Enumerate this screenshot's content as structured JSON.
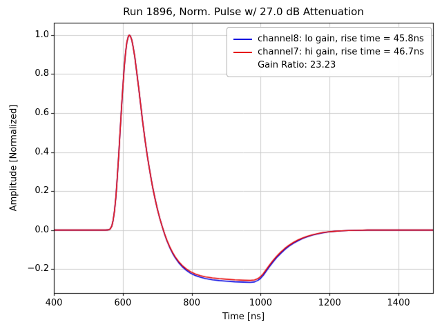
{
  "chart_data": {
    "type": "line",
    "title": "Run 1896, Norm. Pulse w/ 27.0 dB Attenuation",
    "xlabel": "Time [ns]",
    "ylabel": "Amplitude [Normalized]",
    "xlim": [
      400,
      1500
    ],
    "ylim": [
      -0.323,
      1.063
    ],
    "xticks": [
      400,
      600,
      800,
      1000,
      1200,
      1400
    ],
    "yticks": [
      -0.2,
      0.0,
      0.2,
      0.4,
      0.6,
      0.8,
      1.0
    ],
    "ytick_labels": [
      "−0.2",
      "0.0",
      "0.2",
      "0.4",
      "0.6",
      "0.8",
      "1.0"
    ],
    "grid": true,
    "colors": {
      "grid": "#cccccc",
      "spine": "#000000",
      "blue": "#0000e0",
      "red": "#e60000"
    },
    "legend": {
      "position": "upper right",
      "entries": [
        {
          "label": "channel8: lo gain, rise time = 45.8ns",
          "color": "#0000e0"
        },
        {
          "label": "channel7: hi gain, rise time = 46.7ns",
          "color": "#e60000"
        },
        {
          "label": "Gain Ratio: 23.23",
          "color": null
        }
      ]
    },
    "series": [
      {
        "name": "channel8: lo gain",
        "color": "#0000e0",
        "points": [
          [
            400,
            0
          ],
          [
            450,
            0
          ],
          [
            500,
            0
          ],
          [
            530,
            0
          ],
          [
            550,
            0
          ],
          [
            558,
            0.001
          ],
          [
            563,
            0.005
          ],
          [
            568,
            0.02
          ],
          [
            572,
            0.05
          ],
          [
            576,
            0.1
          ],
          [
            580,
            0.17
          ],
          [
            584,
            0.27
          ],
          [
            588,
            0.38
          ],
          [
            592,
            0.5
          ],
          [
            596,
            0.62
          ],
          [
            600,
            0.73
          ],
          [
            604,
            0.83
          ],
          [
            608,
            0.91
          ],
          [
            612,
            0.965
          ],
          [
            616,
            0.993
          ],
          [
            619,
            1.0
          ],
          [
            622,
            0.995
          ],
          [
            626,
            0.975
          ],
          [
            630,
            0.94
          ],
          [
            635,
            0.885
          ],
          [
            640,
            0.815
          ],
          [
            646,
            0.73
          ],
          [
            652,
            0.64
          ],
          [
            658,
            0.55
          ],
          [
            665,
            0.455
          ],
          [
            672,
            0.37
          ],
          [
            679,
            0.295
          ],
          [
            686,
            0.225
          ],
          [
            693,
            0.165
          ],
          [
            700,
            0.11
          ],
          [
            707,
            0.062
          ],
          [
            714,
            0.02
          ],
          [
            721,
            -0.02
          ],
          [
            728,
            -0.055
          ],
          [
            736,
            -0.089
          ],
          [
            744,
            -0.118
          ],
          [
            752,
            -0.142
          ],
          [
            762,
            -0.167
          ],
          [
            772,
            -0.187
          ],
          [
            784,
            -0.206
          ],
          [
            796,
            -0.221
          ],
          [
            810,
            -0.233
          ],
          [
            825,
            -0.242
          ],
          [
            840,
            -0.249
          ],
          [
            860,
            -0.255
          ],
          [
            880,
            -0.259
          ],
          [
            900,
            -0.262
          ],
          [
            925,
            -0.265
          ],
          [
            950,
            -0.267
          ],
          [
            970,
            -0.268
          ],
          [
            982,
            -0.266
          ],
          [
            992,
            -0.258
          ],
          [
            1000,
            -0.247
          ],
          [
            1008,
            -0.231
          ],
          [
            1016,
            -0.211
          ],
          [
            1025,
            -0.189
          ],
          [
            1035,
            -0.166
          ],
          [
            1046,
            -0.142
          ],
          [
            1058,
            -0.12
          ],
          [
            1070,
            -0.1
          ],
          [
            1082,
            -0.083
          ],
          [
            1095,
            -0.068
          ],
          [
            1108,
            -0.055
          ],
          [
            1122,
            -0.043
          ],
          [
            1136,
            -0.034
          ],
          [
            1150,
            -0.026
          ],
          [
            1165,
            -0.02
          ],
          [
            1180,
            -0.014
          ],
          [
            1195,
            -0.01
          ],
          [
            1215,
            -0.006
          ],
          [
            1235,
            -0.004
          ],
          [
            1255,
            -0.002
          ],
          [
            1280,
            -0.001
          ],
          [
            1310,
            0
          ],
          [
            1350,
            0
          ],
          [
            1400,
            0
          ],
          [
            1450,
            0
          ],
          [
            1500,
            0
          ]
        ]
      },
      {
        "name": "channel7: hi gain",
        "color": "#e60000",
        "points": [
          [
            400,
            0
          ],
          [
            450,
            0
          ],
          [
            500,
            0
          ],
          [
            530,
            0
          ],
          [
            550,
            0
          ],
          [
            558,
            0.001
          ],
          [
            563,
            0.005
          ],
          [
            568,
            0.02
          ],
          [
            572,
            0.05
          ],
          [
            576,
            0.1
          ],
          [
            580,
            0.17
          ],
          [
            584,
            0.27
          ],
          [
            588,
            0.38
          ],
          [
            592,
            0.5
          ],
          [
            596,
            0.62
          ],
          [
            600,
            0.73
          ],
          [
            604,
            0.83
          ],
          [
            608,
            0.91
          ],
          [
            612,
            0.965
          ],
          [
            616,
            0.993
          ],
          [
            619,
            1.0
          ],
          [
            622,
            0.995
          ],
          [
            626,
            0.975
          ],
          [
            630,
            0.94
          ],
          [
            635,
            0.885
          ],
          [
            640,
            0.815
          ],
          [
            646,
            0.73
          ],
          [
            652,
            0.64
          ],
          [
            658,
            0.55
          ],
          [
            665,
            0.455
          ],
          [
            672,
            0.37
          ],
          [
            679,
            0.295
          ],
          [
            686,
            0.225
          ],
          [
            693,
            0.165
          ],
          [
            700,
            0.11
          ],
          [
            707,
            0.062
          ],
          [
            714,
            0.02
          ],
          [
            721,
            -0.018
          ],
          [
            728,
            -0.052
          ],
          [
            736,
            -0.085
          ],
          [
            744,
            -0.113
          ],
          [
            752,
            -0.137
          ],
          [
            762,
            -0.161
          ],
          [
            772,
            -0.181
          ],
          [
            784,
            -0.199
          ],
          [
            796,
            -0.213
          ],
          [
            810,
            -0.225
          ],
          [
            825,
            -0.234
          ],
          [
            840,
            -0.24
          ],
          [
            860,
            -0.245
          ],
          [
            880,
            -0.249
          ],
          [
            900,
            -0.252
          ],
          [
            925,
            -0.255
          ],
          [
            950,
            -0.257
          ],
          [
            970,
            -0.258
          ],
          [
            982,
            -0.256
          ],
          [
            992,
            -0.249
          ],
          [
            1000,
            -0.238
          ],
          [
            1008,
            -0.222
          ],
          [
            1016,
            -0.203
          ],
          [
            1025,
            -0.181
          ],
          [
            1035,
            -0.158
          ],
          [
            1046,
            -0.135
          ],
          [
            1058,
            -0.113
          ],
          [
            1070,
            -0.094
          ],
          [
            1082,
            -0.078
          ],
          [
            1095,
            -0.063
          ],
          [
            1108,
            -0.051
          ],
          [
            1122,
            -0.04
          ],
          [
            1136,
            -0.031
          ],
          [
            1150,
            -0.024
          ],
          [
            1165,
            -0.018
          ],
          [
            1180,
            -0.013
          ],
          [
            1195,
            -0.009
          ],
          [
            1215,
            -0.006
          ],
          [
            1235,
            -0.004
          ],
          [
            1255,
            -0.002
          ],
          [
            1280,
            -0.001
          ],
          [
            1310,
            0
          ],
          [
            1350,
            0
          ],
          [
            1400,
            0
          ],
          [
            1450,
            0
          ],
          [
            1500,
            0
          ]
        ]
      }
    ]
  }
}
